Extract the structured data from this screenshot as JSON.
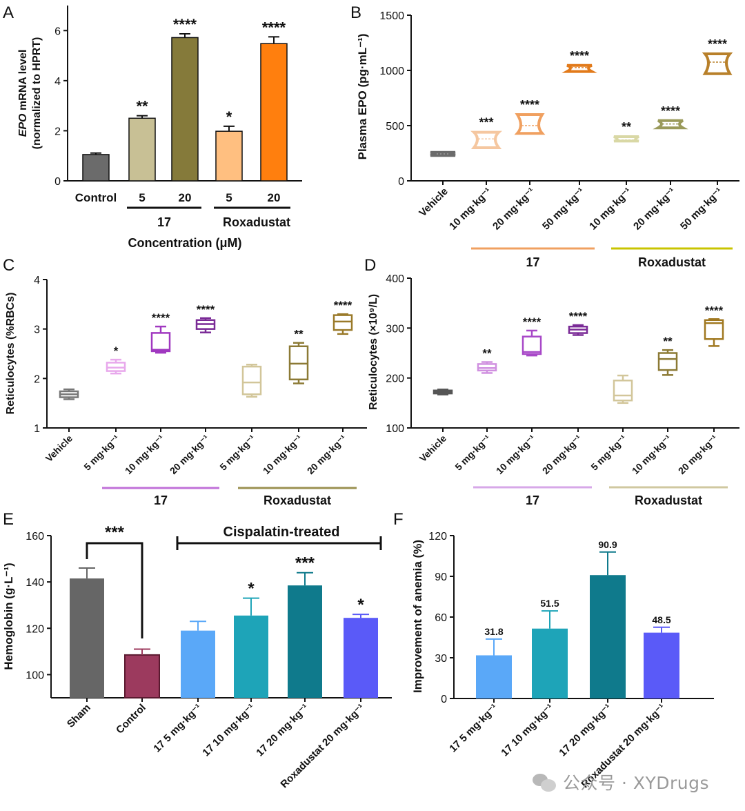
{
  "colors": {
    "axis": "#111111",
    "label_orange": "#f0a060",
    "label_olive": "#c8c400",
    "label_violet": "#c070d8",
    "label_olive2": "#9a9050",
    "label_violet2": "#d7a8e8",
    "label_tan": "#d0c8a0"
  },
  "watermark": "公众号 · XYDrugs",
  "chart_data": [
    {
      "id": "A",
      "panel_label": "A",
      "type": "bar",
      "ylabel_parts": [
        "EPO",
        " mRNA level"
      ],
      "ylabel2": "(normalized to HPRT)",
      "ylim": [
        0,
        7
      ],
      "yticks": [
        0,
        2,
        4,
        6
      ],
      "categories": [
        "Control",
        "5",
        "20",
        "5",
        "20"
      ],
      "values": [
        1.05,
        2.5,
        5.72,
        1.98,
        5.48
      ],
      "errors": [
        0.06,
        0.1,
        0.15,
        0.2,
        0.27
      ],
      "colors": [
        "#6b6b6b",
        "#c8c095",
        "#857a3a",
        "#ffbf80",
        "#ff7f0e"
      ],
      "stars": [
        "",
        "**",
        "****",
        "*",
        "****"
      ],
      "groups": [
        {
          "label": "17",
          "from": 1,
          "to": 2,
          "color": "#111111"
        },
        {
          "label": "Roxadustat",
          "from": 3,
          "to": 4,
          "color": "#111111"
        }
      ],
      "xlabel": "Concentration (μM)"
    },
    {
      "id": "B",
      "panel_label": "B",
      "type": "box",
      "ylabel": "Plasma EPO (pg·mL⁻¹)",
      "ylim": [
        0,
        1500
      ],
      "yticks": [
        0,
        500,
        1000,
        1500
      ],
      "categories": [
        "Vehicle",
        "10 mg·kg⁻¹",
        "20 mg·kg⁻¹",
        "50 mg·kg⁻¹",
        "10 mg·kg⁻¹",
        "20 mg·kg⁻¹",
        "50 mg·kg⁻¹"
      ],
      "boxes": [
        {
          "min": 230,
          "q1": 238,
          "median": 245,
          "q3": 252,
          "max": 258
        },
        {
          "min": 300,
          "q1": 320,
          "median": 380,
          "q3": 430,
          "max": 440
        },
        {
          "min": 430,
          "q1": 440,
          "median": 500,
          "q3": 580,
          "max": 600
        },
        {
          "min": 990,
          "q1": 1000,
          "median": 1025,
          "q3": 1040,
          "max": 1045
        },
        {
          "min": 360,
          "q1": 362,
          "median": 370,
          "q3": 385,
          "max": 400
        },
        {
          "min": 480,
          "q1": 490,
          "median": 515,
          "q3": 530,
          "max": 545
        },
        {
          "min": 970,
          "q1": 985,
          "median": 1075,
          "q3": 1140,
          "max": 1150
        }
      ],
      "colors": [
        "#6b6b6b",
        "#f5c7a0",
        "#f0a060",
        "#e27a1a",
        "#d9d8a5",
        "#9a9a5a",
        "#b8802a"
      ],
      "stars": [
        "",
        "***",
        "****",
        "****",
        "**",
        "****",
        "****"
      ],
      "groups": [
        {
          "label": "17",
          "from": 1,
          "to": 3,
          "color": "#f0a060"
        },
        {
          "label": "Roxadustat",
          "from": 4,
          "to": 6,
          "color": "#c8c400"
        }
      ]
    },
    {
      "id": "C",
      "panel_label": "C",
      "type": "box",
      "ylabel": "Reticulocytes (%RBCs)",
      "ylim": [
        1,
        4
      ],
      "yticks": [
        1,
        2,
        3,
        4
      ],
      "categories": [
        "Vehicle",
        "5 mg·kg⁻¹",
        "10 mg·kg⁻¹",
        "20 mg·kg⁻¹",
        "5 mg·kg⁻¹",
        "10 mg·kg⁻¹",
        "20 mg·kg⁻¹"
      ],
      "boxes": [
        {
          "min": 1.58,
          "q1": 1.62,
          "median": 1.68,
          "q3": 1.74,
          "max": 1.78
        },
        {
          "min": 2.1,
          "q1": 2.15,
          "median": 2.22,
          "q3": 2.32,
          "max": 2.38
        },
        {
          "min": 2.52,
          "q1": 2.55,
          "median": 2.58,
          "q3": 2.92,
          "max": 3.05
        },
        {
          "min": 2.93,
          "q1": 3.0,
          "median": 3.1,
          "q3": 3.18,
          "max": 3.22
        },
        {
          "min": 1.63,
          "q1": 1.68,
          "median": 1.92,
          "q3": 2.24,
          "max": 2.28
        },
        {
          "min": 1.9,
          "q1": 1.98,
          "median": 2.3,
          "q3": 2.65,
          "max": 2.72
        },
        {
          "min": 2.9,
          "q1": 2.98,
          "median": 3.15,
          "q3": 3.28,
          "max": 3.3
        }
      ],
      "colors": [
        "#777777",
        "#e8a8ec",
        "#a038c0",
        "#7a2a96",
        "#d2c69a",
        "#8c7a35",
        "#9a7a2a"
      ],
      "stars": [
        "",
        "*",
        "****",
        "****",
        "",
        "**",
        "****"
      ],
      "groups": [
        {
          "label": "17",
          "from": 1,
          "to": 3,
          "color": "#c070d8"
        },
        {
          "label": "Roxadustat",
          "from": 4,
          "to": 6,
          "color": "#9a9050"
        }
      ]
    },
    {
      "id": "D",
      "panel_label": "D",
      "type": "box",
      "ylabel": "Reticulocytes (×10⁹/L)",
      "ylim": [
        100,
        400
      ],
      "yticks": [
        100,
        200,
        300,
        400
      ],
      "categories": [
        "Vehicle",
        "5 mg·kg⁻¹",
        "10 mg·kg⁻¹",
        "20 mg·kg⁻¹",
        "5 mg·kg⁻¹",
        "10 mg·kg⁻¹",
        "20 mg·kg⁻¹"
      ],
      "boxes": [
        {
          "min": 167,
          "q1": 169,
          "median": 172,
          "q3": 175,
          "max": 177
        },
        {
          "min": 210,
          "q1": 215,
          "median": 220,
          "q3": 228,
          "max": 232
        },
        {
          "min": 245,
          "q1": 248,
          "median": 252,
          "q3": 283,
          "max": 295
        },
        {
          "min": 286,
          "q1": 290,
          "median": 297,
          "q3": 303,
          "max": 306
        },
        {
          "min": 150,
          "q1": 155,
          "median": 165,
          "q3": 195,
          "max": 205
        },
        {
          "min": 206,
          "q1": 216,
          "median": 238,
          "q3": 250,
          "max": 256
        },
        {
          "min": 264,
          "q1": 278,
          "median": 310,
          "q3": 316,
          "max": 318
        }
      ],
      "colors": [
        "#555555",
        "#d090e0",
        "#a848c8",
        "#7a2a96",
        "#d2c69a",
        "#8c7a35",
        "#a07820"
      ],
      "stars": [
        "",
        "**",
        "****",
        "****",
        "",
        "**",
        "****"
      ],
      "groups": [
        {
          "label": "17",
          "from": 1,
          "to": 3,
          "color": "#d7a8e8"
        },
        {
          "label": "Roxadustat",
          "from": 4,
          "to": 6,
          "color": "#d0c8a0"
        }
      ]
    },
    {
      "id": "E",
      "panel_label": "E",
      "type": "bar",
      "ylabel": "Hemoglobin (g·L⁻¹)",
      "ylim": [
        90,
        160
      ],
      "yticks": [
        100,
        120,
        140,
        160
      ],
      "categories": [
        "Sham",
        "Control",
        "17 5 mg·kg⁻¹",
        "17 10 mg·kg⁻¹",
        "17 20 mg·kg⁻¹",
        "Roxadustat 20 mg·kg⁻¹"
      ],
      "values": [
        141.5,
        108.5,
        119,
        125.5,
        138.5,
        124.5
      ],
      "errors": [
        4.5,
        2.5,
        4,
        7.5,
        5.5,
        1.5
      ],
      "colors": [
        "#666666",
        "#9c3a5e",
        "#5aa8f8",
        "#1ea4b8",
        "#0f7a8c",
        "#5a5af8"
      ],
      "stars": [
        "",
        "",
        "",
        "*",
        "***",
        "*"
      ],
      "comparison": {
        "from": 0,
        "to": 1,
        "label": "***"
      },
      "bracket_label": "Cispalatin-treated"
    },
    {
      "id": "F",
      "panel_label": "F",
      "type": "bar",
      "ylabel": "Improvement of anemia (%)",
      "ylim": [
        0,
        120
      ],
      "yticks": [
        0,
        30,
        60,
        90,
        120
      ],
      "categories": [
        "17 5 mg·kg⁻¹",
        "17 10 mg·kg⁻¹",
        "17 20 mg·kg⁻¹",
        "Roxadustat 20 mg·kg⁻¹"
      ],
      "values": [
        31.8,
        51.5,
        90.9,
        48.5
      ],
      "errors": [
        12,
        13,
        17,
        4
      ],
      "value_labels": [
        "31.8",
        "51.5",
        "90.9",
        "48.5"
      ],
      "colors": [
        "#5aa8f8",
        "#1ea4b8",
        "#0f7a8c",
        "#5a5af8"
      ]
    }
  ]
}
